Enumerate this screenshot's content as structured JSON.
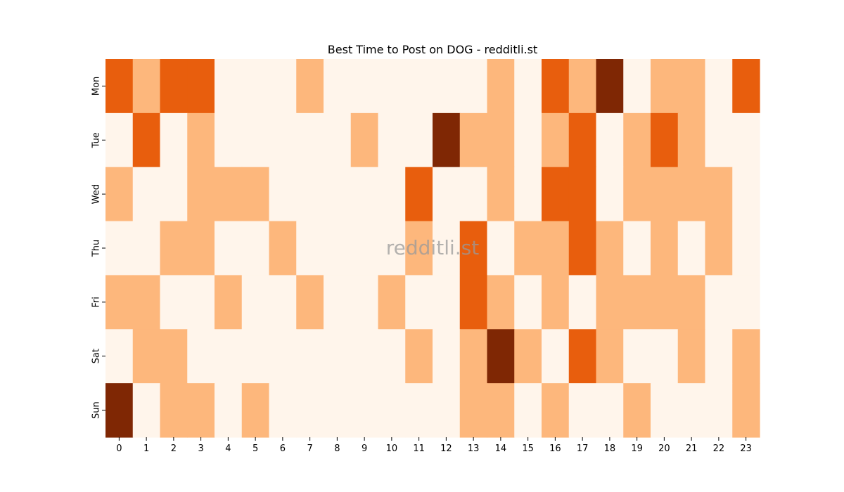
{
  "chart_data": {
    "type": "heatmap",
    "title": "Best Time to Post on DOG - redditli.st",
    "xlabel": "",
    "ylabel": "",
    "x_categories": [
      "0",
      "1",
      "2",
      "3",
      "4",
      "5",
      "6",
      "7",
      "8",
      "9",
      "10",
      "11",
      "12",
      "13",
      "14",
      "15",
      "16",
      "17",
      "18",
      "19",
      "20",
      "21",
      "22",
      "23"
    ],
    "y_categories": [
      "Mon",
      "Tue",
      "Wed",
      "Thu",
      "Fri",
      "Sat",
      "Sun"
    ],
    "value_scale": [
      0,
      3
    ],
    "colormap": [
      "#fff5eb",
      "#fdb77c",
      "#e85e0d",
      "#7f2704"
    ],
    "colorbar": false,
    "values": [
      [
        2,
        1,
        2,
        2,
        0,
        0,
        0,
        1,
        0,
        0,
        0,
        0,
        0,
        0,
        1,
        0,
        2,
        1,
        3,
        0,
        1,
        1,
        0,
        2
      ],
      [
        0,
        2,
        0,
        1,
        0,
        0,
        0,
        0,
        0,
        1,
        0,
        0,
        3,
        1,
        1,
        0,
        1,
        2,
        0,
        1,
        2,
        1,
        0,
        0
      ],
      [
        1,
        0,
        0,
        1,
        1,
        1,
        0,
        0,
        0,
        0,
        0,
        2,
        0,
        0,
        1,
        0,
        2,
        2,
        0,
        1,
        1,
        1,
        1,
        0
      ],
      [
        0,
        0,
        1,
        1,
        0,
        0,
        1,
        0,
        0,
        0,
        0,
        1,
        0,
        2,
        0,
        1,
        1,
        2,
        1,
        0,
        1,
        0,
        1,
        0
      ],
      [
        1,
        1,
        0,
        0,
        1,
        0,
        0,
        1,
        0,
        0,
        1,
        0,
        0,
        2,
        1,
        0,
        1,
        0,
        1,
        1,
        1,
        1,
        0,
        0
      ],
      [
        0,
        1,
        1,
        0,
        0,
        0,
        0,
        0,
        0,
        0,
        0,
        1,
        0,
        1,
        3,
        1,
        0,
        2,
        1,
        0,
        0,
        1,
        0,
        1
      ],
      [
        3,
        0,
        1,
        1,
        0,
        1,
        0,
        0,
        0,
        0,
        0,
        0,
        0,
        1,
        1,
        0,
        1,
        0,
        0,
        1,
        0,
        0,
        0,
        1
      ]
    ]
  },
  "watermark": "redditli.st"
}
